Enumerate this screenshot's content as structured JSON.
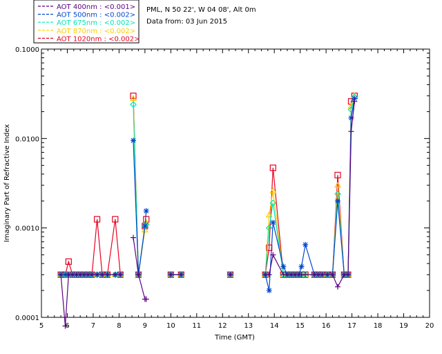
{
  "header": {
    "site": "PML, N 50 22', W 04 08', Alt 0m",
    "date": "Data from: 03 Jun 2015"
  },
  "chart_data": {
    "type": "line",
    "xlabel": "Time (GMT)",
    "ylabel": "Imaginary Part of Refractive Index",
    "xlim": [
      5,
      20
    ],
    "ylim": [
      0.0001,
      0.1
    ],
    "yscale": "log",
    "x_ticks": [
      "5",
      "6",
      "7",
      "8",
      "9",
      "10",
      "11",
      "12",
      "13",
      "14",
      "15",
      "16",
      "17",
      "18",
      "19",
      "20"
    ],
    "y_ticks": [
      "0.0001",
      "0.0010",
      "0.0100",
      "0.1000"
    ],
    "legend_position": "top-left",
    "series": [
      {
        "name": "AOT  400nm : <0.001>",
        "color": "#5a007f",
        "marker": "plus",
        "x": [
          5.75,
          5.92,
          6.05,
          6.2,
          6.35,
          6.5,
          6.65,
          6.8,
          6.95,
          7.15,
          7.35,
          7.55,
          7.85,
          8.05,
          8.55,
          8.75,
          9.0,
          9.05,
          10.0,
          10.4,
          12.3,
          13.65,
          13.8,
          13.95,
          14.35,
          14.5,
          14.65,
          14.8,
          14.95,
          15.05,
          15.2,
          15.55,
          15.7,
          15.85,
          16.05,
          16.25,
          16.45,
          16.7,
          16.85,
          16.97,
          17.1
        ],
        "y": [
          0.0003,
          8e-05,
          0.0003,
          0.0003,
          0.0003,
          0.0003,
          0.0003,
          0.0003,
          0.0003,
          0.0003,
          0.0003,
          0.0003,
          0.0003,
          0.0003,
          0.00078,
          0.0003,
          0.00016,
          0.00016,
          0.0003,
          0.0003,
          0.0003,
          0.0003,
          0.0003,
          0.0005,
          0.0003,
          0.0003,
          0.0003,
          0.0003,
          0.0003,
          0.0003,
          0.0003,
          0.0003,
          0.0003,
          0.0003,
          0.0003,
          0.0003,
          0.00022,
          0.0003,
          0.0003,
          0.012,
          0.026
        ]
      },
      {
        "name": "AOT  500nm : <0.002>",
        "color": "#0047d1",
        "marker": "star",
        "x": [
          5.75,
          5.92,
          6.05,
          6.2,
          6.35,
          6.5,
          6.65,
          6.8,
          6.95,
          7.15,
          7.35,
          7.55,
          7.85,
          8.05,
          8.55,
          8.75,
          9.0,
          9.05,
          10.0,
          10.4,
          12.3,
          13.65,
          13.8,
          13.95,
          14.35,
          14.5,
          14.65,
          14.8,
          14.95,
          15.05,
          15.2,
          15.55,
          15.7,
          15.85,
          16.05,
          16.25,
          16.45,
          16.7,
          16.85,
          16.97,
          17.1
        ],
        "y": [
          0.0003,
          0.0003,
          0.0003,
          0.0003,
          0.0003,
          0.0003,
          0.0003,
          0.0003,
          0.0003,
          0.0003,
          0.0003,
          0.0003,
          0.0003,
          0.0003,
          0.0095,
          0.0003,
          0.00105,
          0.00155,
          0.0003,
          0.0003,
          0.0003,
          0.0003,
          0.0002,
          0.00115,
          0.00037,
          0.0003,
          0.0003,
          0.0003,
          0.0003,
          0.00037,
          0.00065,
          0.0003,
          0.0003,
          0.0003,
          0.0003,
          0.0003,
          0.002,
          0.0003,
          0.0003,
          0.017,
          0.028
        ]
      },
      {
        "name": "AOT  675nm : <0.002>",
        "color": "#00e6b4",
        "marker": "diamond",
        "x": [
          5.75,
          5.92,
          6.05,
          6.2,
          6.35,
          6.5,
          6.65,
          6.8,
          6.95,
          7.15,
          7.35,
          7.55,
          7.85,
          8.05,
          8.55,
          8.75,
          9.0,
          9.05,
          10.0,
          10.4,
          12.3,
          13.65,
          13.8,
          13.95,
          14.35,
          14.5,
          14.65,
          14.8,
          14.95,
          15.05,
          15.2,
          15.55,
          15.7,
          15.85,
          16.05,
          16.25,
          16.45,
          16.7,
          16.85,
          16.97,
          17.1
        ],
        "y": [
          0.0003,
          0.0003,
          0.0003,
          0.0003,
          0.0003,
          0.0003,
          0.0003,
          0.0003,
          0.0003,
          0.0003,
          0.0003,
          0.0003,
          0.0003,
          0.0003,
          0.024,
          0.0003,
          0.00105,
          0.0011,
          0.0003,
          0.0003,
          0.0003,
          0.0003,
          0.001,
          0.0019,
          0.0003,
          0.0003,
          0.0003,
          0.0003,
          0.0003,
          0.0003,
          0.0003,
          0.0003,
          0.0003,
          0.0003,
          0.0003,
          0.0003,
          0.0024,
          0.0003,
          0.0003,
          0.021,
          0.029
        ]
      },
      {
        "name": "AOT  870nm : <0.002>",
        "color": "#ffcc00",
        "marker": "triangle",
        "x": [
          5.75,
          5.92,
          6.05,
          6.2,
          6.35,
          6.5,
          6.65,
          6.8,
          6.95,
          7.15,
          7.35,
          7.55,
          7.85,
          8.05,
          8.55,
          8.75,
          9.0,
          9.05,
          10.0,
          10.4,
          12.3,
          13.65,
          13.8,
          13.95,
          14.35,
          14.5,
          14.65,
          14.8,
          14.95,
          15.05,
          15.2,
          15.55,
          15.7,
          15.85,
          16.05,
          16.25,
          16.45,
          16.7,
          16.85,
          16.97,
          17.1
        ],
        "y": [
          0.0003,
          0.0003,
          0.0003,
          0.0003,
          0.0003,
          0.0003,
          0.0003,
          0.0003,
          0.0003,
          0.0003,
          0.0003,
          0.0003,
          0.0003,
          0.0003,
          0.028,
          0.0003,
          0.00095,
          0.00115,
          0.0003,
          0.0003,
          0.0003,
          0.0003,
          0.0014,
          0.0026,
          0.0003,
          0.0003,
          0.0003,
          0.0003,
          0.0003,
          0.0003,
          0.0003,
          0.0003,
          0.0003,
          0.0003,
          0.0003,
          0.0003,
          0.003,
          0.0003,
          0.0003,
          0.023,
          0.03
        ]
      },
      {
        "name": "AOT 1020nm : <0.002>",
        "color": "#e8001f",
        "marker": "square",
        "x": [
          5.75,
          5.92,
          6.05,
          6.2,
          6.35,
          6.5,
          6.65,
          6.8,
          6.95,
          7.15,
          7.35,
          7.55,
          7.85,
          8.05,
          8.55,
          8.75,
          9.0,
          9.05,
          10.0,
          10.4,
          12.3,
          13.65,
          13.8,
          13.95,
          14.35,
          14.5,
          14.65,
          14.8,
          14.95,
          15.05,
          15.2,
          15.55,
          15.7,
          15.85,
          16.05,
          16.25,
          16.45,
          16.7,
          16.85,
          16.97,
          17.1
        ],
        "y": [
          0.0003,
          0.0003,
          0.00042,
          0.0003,
          0.0003,
          0.0003,
          0.0003,
          0.0003,
          0.0003,
          0.00125,
          0.0003,
          0.0003,
          0.00125,
          0.0003,
          0.03,
          0.0003,
          0.00105,
          0.00125,
          0.0003,
          0.0003,
          0.0003,
          0.0003,
          0.0006,
          0.0047,
          0.0003,
          0.0003,
          0.0003,
          0.0003,
          0.0003,
          0.0003,
          0.0003,
          0.0003,
          0.0003,
          0.0003,
          0.0003,
          0.0003,
          0.0039,
          0.0003,
          0.0003,
          0.026,
          0.03
        ]
      }
    ]
  }
}
